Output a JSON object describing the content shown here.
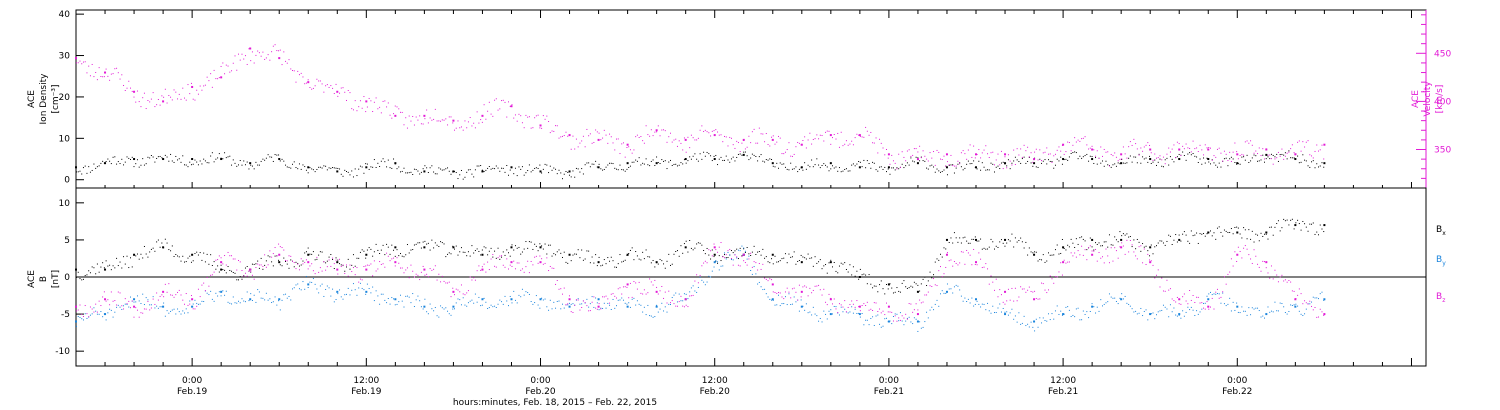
{
  "chart_data": [
    {
      "type": "scatter",
      "panel": "top",
      "left_ylabel_lines": [
        "ACE",
        "Ion Density",
        "[cm⁻³]"
      ],
      "right_ylabel_lines": [
        "ACE",
        "Velocity",
        "[km/s]"
      ],
      "left_ylim": [
        -2,
        41
      ],
      "left_yticks": [
        "0",
        "10",
        "20",
        "30",
        "40"
      ],
      "right_ylim": [
        310,
        495
      ],
      "right_yticks": [
        "350",
        "400",
        "450"
      ],
      "grid": false,
      "colors": {
        "density": "#000000",
        "velocity": "#e21bd6"
      },
      "series": [
        {
          "axis": "left",
          "color": "#000000",
          "x_hours": [
            -8,
            -6,
            -4,
            -2,
            0,
            2,
            4,
            6,
            8,
            10,
            12,
            14,
            16,
            18,
            20,
            22,
            24,
            26,
            28,
            30,
            32,
            34,
            36,
            38,
            40,
            42,
            44,
            46,
            48,
            50,
            52,
            54,
            56,
            58,
            60,
            62,
            64,
            66,
            68,
            70,
            72,
            74,
            76,
            78
          ],
          "values": [
            3,
            4,
            5,
            5,
            5,
            5,
            4,
            5,
            3,
            2,
            3,
            4,
            2,
            2,
            2,
            3,
            2,
            2,
            3,
            4,
            4,
            5,
            5,
            6,
            4,
            3,
            4,
            3,
            3,
            4,
            3,
            3,
            4,
            4,
            5,
            5,
            4,
            5,
            5,
            5,
            4,
            6,
            5,
            4
          ]
        },
        {
          "axis": "right",
          "color": "#e21bd6",
          "x_hours": [
            -8,
            -6,
            -4,
            -2,
            0,
            2,
            4,
            6,
            8,
            10,
            12,
            14,
            16,
            18,
            20,
            22,
            24,
            26,
            28,
            30,
            32,
            34,
            36,
            38,
            40,
            42,
            44,
            46,
            48,
            50,
            52,
            54,
            56,
            58,
            60,
            62,
            64,
            66,
            68,
            70,
            72,
            74,
            76,
            78
          ],
          "values": [
            445,
            430,
            410,
            400,
            415,
            425,
            455,
            445,
            420,
            410,
            400,
            385,
            385,
            380,
            385,
            395,
            375,
            365,
            360,
            355,
            370,
            360,
            365,
            360,
            360,
            355,
            365,
            365,
            345,
            340,
            345,
            345,
            345,
            340,
            355,
            350,
            345,
            350,
            350,
            350,
            345,
            350,
            345,
            355
          ]
        }
      ]
    },
    {
      "type": "scatter",
      "panel": "bottom",
      "left_ylabel_lines": [
        "ACE",
        "B",
        "[nT]"
      ],
      "ylim": [
        -12,
        12
      ],
      "yticks": [
        "10",
        "5",
        "0",
        "-5",
        "-10"
      ],
      "zero_line": true,
      "xlabel": "hours:minutes, Feb. 18, 2015 – Feb. 22, 2015",
      "x_range_hours": [
        -8,
        85
      ],
      "xticks": [
        {
          "h": 0,
          "time": "0:00",
          "date": "Feb.19"
        },
        {
          "h": 12,
          "time": "12:00",
          "date": "Feb.19"
        },
        {
          "h": 24,
          "time": "0:00",
          "date": "Feb.20"
        },
        {
          "h": 36,
          "time": "12:00",
          "date": "Feb.20"
        },
        {
          "h": 48,
          "time": "0:00",
          "date": "Feb.21"
        },
        {
          "h": 60,
          "time": "12:00",
          "date": "Feb.21"
        },
        {
          "h": 72,
          "time": "0:00",
          "date": "Feb.22"
        }
      ],
      "legend": [
        {
          "base": "B",
          "sub": "x",
          "color": "#000000"
        },
        {
          "base": "B",
          "sub": "y",
          "color": "#1a84dc"
        },
        {
          "base": "B",
          "sub": "z",
          "color": "#e21bd6"
        }
      ],
      "series": [
        {
          "name_sub": "x",
          "color": "#000000",
          "x_hours": [
            -8,
            -6,
            -4,
            -2,
            0,
            2,
            4,
            6,
            8,
            10,
            12,
            14,
            16,
            18,
            20,
            22,
            24,
            26,
            28,
            30,
            32,
            34,
            36,
            38,
            40,
            42,
            44,
            46,
            48,
            50,
            52,
            54,
            56,
            58,
            60,
            62,
            64,
            66,
            68,
            70,
            72,
            74,
            76,
            78
          ],
          "values": [
            1,
            1,
            3,
            4,
            3,
            1,
            1,
            2,
            3,
            2,
            3,
            4,
            4,
            4,
            3,
            4,
            4,
            3,
            2,
            3,
            2,
            4,
            3,
            3,
            3,
            2,
            2,
            0,
            -1,
            -2,
            5,
            5,
            5,
            3,
            4,
            5,
            5,
            4,
            5,
            6,
            6,
            6,
            7,
            7
          ]
        },
        {
          "name_sub": "y",
          "color": "#1a84dc",
          "x_hours": [
            -8,
            -6,
            -4,
            -2,
            0,
            2,
            4,
            6,
            8,
            10,
            12,
            14,
            16,
            18,
            20,
            22,
            24,
            26,
            28,
            30,
            32,
            34,
            36,
            38,
            40,
            42,
            44,
            46,
            48,
            50,
            52,
            54,
            56,
            58,
            60,
            62,
            64,
            66,
            68,
            70,
            72,
            74,
            76,
            78
          ],
          "values": [
            -6,
            -5,
            -3,
            -4,
            -4,
            -2,
            -3,
            -3,
            -1,
            -2,
            -2,
            -3,
            -4,
            -4,
            -3,
            -3,
            -3,
            -4,
            -3,
            -4,
            -4,
            -3,
            2,
            3,
            -3,
            -4,
            -5,
            -5,
            -6,
            -6,
            -2,
            -3,
            -5,
            -6,
            -5,
            -4,
            -3,
            -5,
            -5,
            -3,
            -4,
            -5,
            -4,
            -3
          ]
        },
        {
          "name_sub": "z",
          "color": "#e21bd6",
          "x_hours": [
            -8,
            -6,
            -4,
            -2,
            0,
            2,
            4,
            6,
            8,
            10,
            12,
            14,
            16,
            18,
            20,
            22,
            24,
            26,
            28,
            30,
            32,
            34,
            36,
            38,
            40,
            42,
            44,
            46,
            48,
            50,
            52,
            54,
            56,
            58,
            60,
            62,
            64,
            66,
            68,
            70,
            72,
            74,
            76,
            78
          ],
          "values": [
            -4,
            -3,
            -4,
            -2,
            -3,
            2,
            1,
            3,
            2,
            1,
            1,
            2,
            1,
            -2,
            1,
            2,
            2,
            -3,
            -4,
            -1,
            -2,
            -3,
            4,
            3,
            -1,
            -2,
            -3,
            -4,
            -4,
            -5,
            3,
            2,
            -2,
            -3,
            2,
            3,
            4,
            2,
            -3,
            -4,
            3,
            2,
            -3,
            -5
          ]
        }
      ]
    }
  ]
}
